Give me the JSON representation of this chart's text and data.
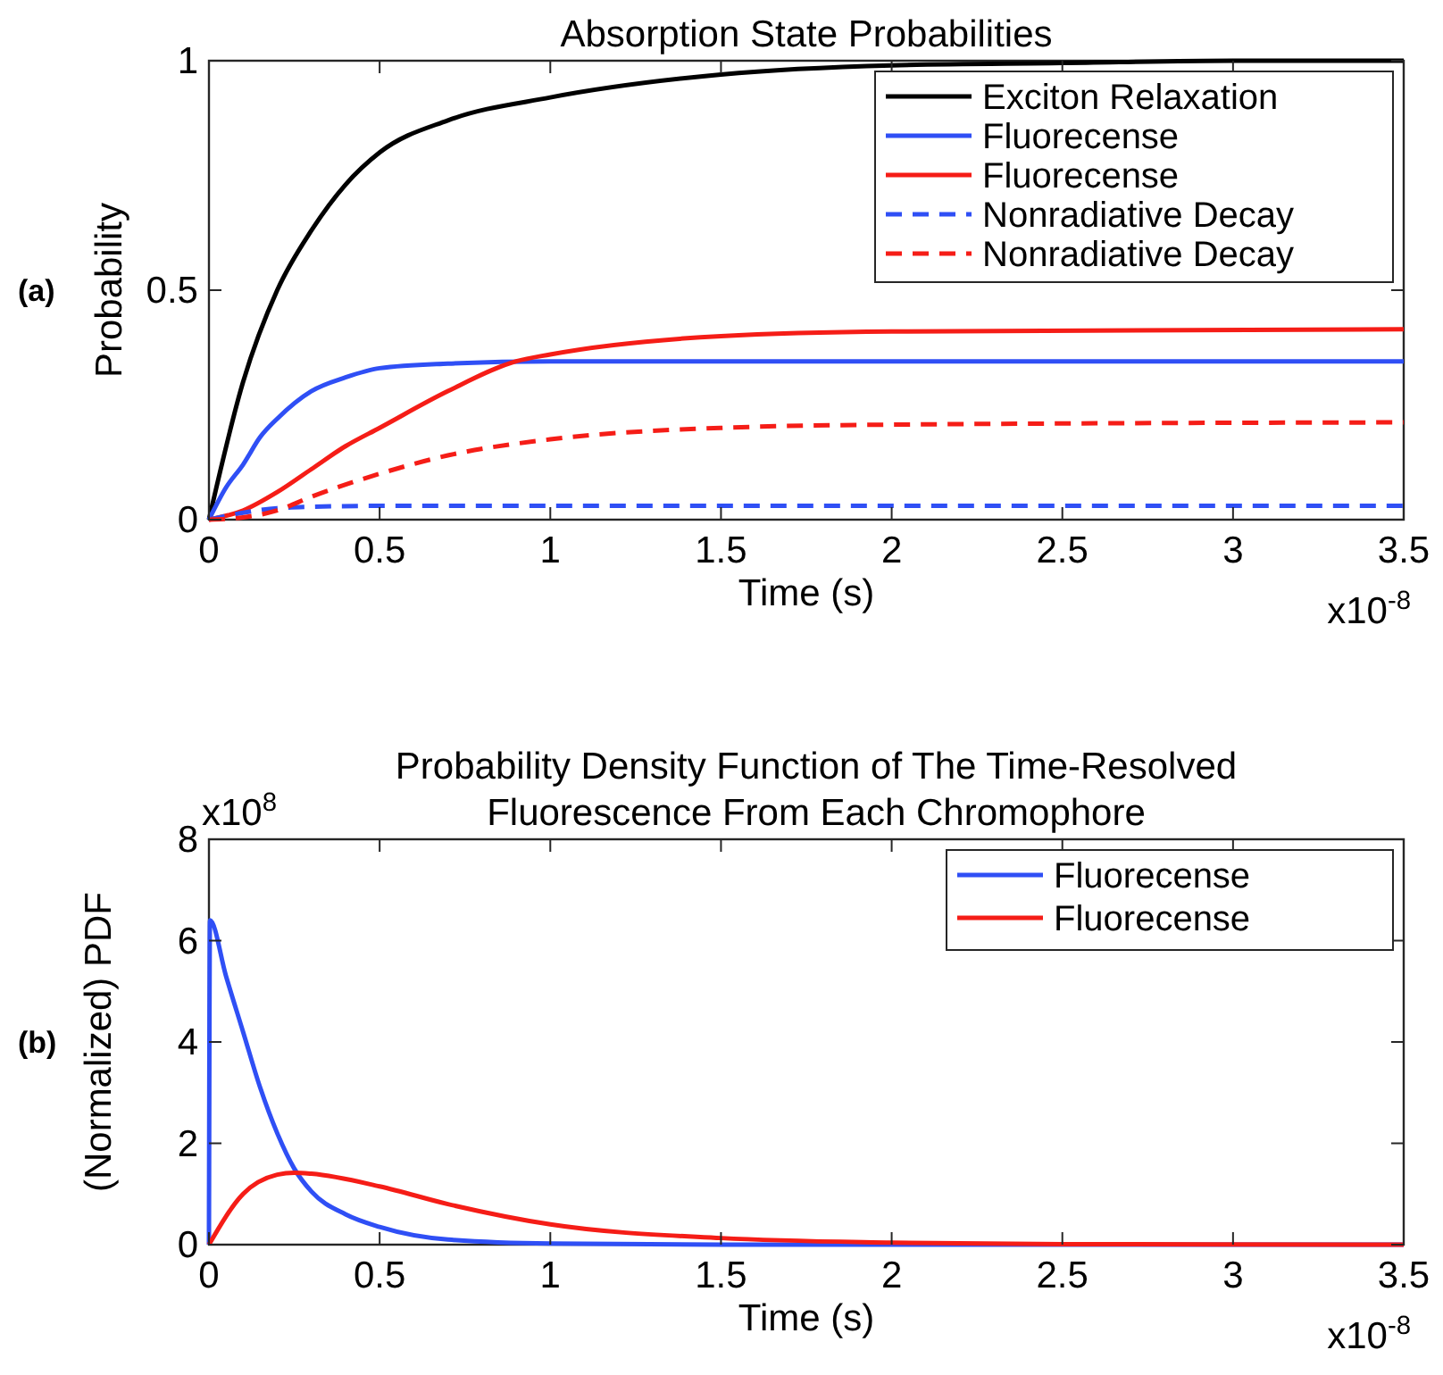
{
  "chart_data": [
    {
      "type": "line",
      "title": "Absorption State Probabilities",
      "xlabel": "Time (s)",
      "ylabel": "Probability",
      "annotations": [
        "(a)",
        "x10$^{-8}$"
      ],
      "xlim": [
        0,
        3.5
      ],
      "xticks": [
        0,
        0.5,
        1,
        1.5,
        2,
        2.5,
        3,
        3.5
      ],
      "ylim": [
        0,
        1
      ],
      "yticks": [
        0,
        0.5,
        1
      ],
      "legend": "top right",
      "grid": false,
      "series": [
        {
          "name": "Exciton Relaxation",
          "color": "#000000",
          "line_style": "solid",
          "x": [
            0,
            0.1,
            0.2,
            0.3,
            0.4,
            0.5,
            0.7,
            1,
            1.5,
            2,
            2.5,
            3,
            3.5
          ],
          "values": [
            0,
            0.3,
            0.5,
            0.63,
            0.73,
            0.8,
            0.87,
            0.92,
            0.97,
            0.99,
            0.995,
            1,
            1
          ]
        },
        {
          "name": "Fluorecense",
          "color": "#2f4ff5",
          "line_style": "solid",
          "x": [
            0,
            0.05,
            0.1,
            0.15,
            0.2,
            0.3,
            0.4,
            0.5,
            0.7,
            1,
            2,
            3.5
          ],
          "values": [
            0,
            0.07,
            0.12,
            0.18,
            0.22,
            0.28,
            0.31,
            0.33,
            0.34,
            0.345,
            0.345,
            0.345
          ]
        },
        {
          "name": "Fluorecense",
          "color": "#f51d17",
          "line_style": "solid",
          "x": [
            0,
            0.1,
            0.2,
            0.3,
            0.4,
            0.5,
            0.7,
            0.9,
            1,
            1.5,
            2,
            3.5
          ],
          "values": [
            0,
            0.02,
            0.06,
            0.11,
            0.16,
            0.2,
            0.28,
            0.345,
            0.36,
            0.4,
            0.41,
            0.415
          ]
        },
        {
          "name": "Nonradiative Decay",
          "color": "#2f4ff5",
          "line_style": "dashed",
          "x": [
            0,
            0.1,
            0.2,
            0.3,
            0.5,
            3.5
          ],
          "values": [
            0,
            0.015,
            0.025,
            0.028,
            0.03,
            0.03
          ]
        },
        {
          "name": "Nonradiative Decay",
          "color": "#f51d17",
          "line_style": "dashed",
          "x": [
            0,
            0.1,
            0.2,
            0.3,
            0.5,
            0.7,
            1,
            1.5,
            2,
            3.5
          ],
          "values": [
            0,
            0.005,
            0.02,
            0.05,
            0.1,
            0.14,
            0.175,
            0.2,
            0.207,
            0.212
          ]
        }
      ]
    },
    {
      "type": "line",
      "title": "Probability Density Function of The Time-Resolved\nFluorescence From Each Chromophore",
      "xlabel": "Time (s)",
      "ylabel": "(Normalized) PDF",
      "annotations": [
        "(b)",
        "x10$^{-8}$",
        "x10$^{8}$"
      ],
      "xlim": [
        0,
        3.5
      ],
      "xticks": [
        0,
        0.5,
        1,
        1.5,
        2,
        2.5,
        3,
        3.5
      ],
      "ylim": [
        0,
        8
      ],
      "yticks": [
        0,
        2,
        4,
        6,
        8
      ],
      "legend": "top right",
      "grid": false,
      "series": [
        {
          "name": "Fluorecense",
          "color": "#2f4ff5",
          "line_style": "solid",
          "x": [
            0,
            0.003,
            0.05,
            0.1,
            0.15,
            0.2,
            0.25,
            0.3,
            0.4,
            0.5,
            0.7,
            1,
            1.5,
            3.5
          ],
          "values": [
            0,
            6.4,
            5.3,
            4.2,
            3.1,
            2.2,
            1.5,
            1.05,
            0.6,
            0.35,
            0.1,
            0.02,
            0,
            0
          ]
        },
        {
          "name": "Fluorecense",
          "color": "#f51d17",
          "line_style": "solid",
          "x": [
            0,
            0.1,
            0.2,
            0.25,
            0.3,
            0.5,
            0.7,
            1,
            1.5,
            2,
            2.5,
            3.5
          ],
          "values": [
            0,
            1,
            1.38,
            1.42,
            1.4,
            1.15,
            0.8,
            0.4,
            0.13,
            0.04,
            0.01,
            0
          ]
        }
      ]
    }
  ]
}
